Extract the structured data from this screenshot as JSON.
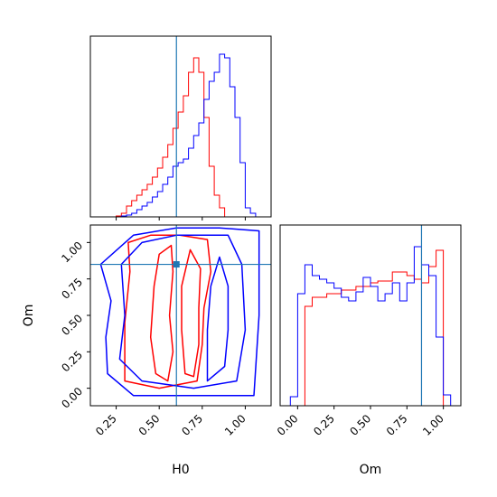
{
  "chart_data": {
    "type": "corner",
    "parameters": [
      "H0",
      "Om"
    ],
    "truths": {
      "H0": 0.6,
      "Om": 0.85
    },
    "colors": {
      "red": "#ff0000",
      "blue": "#0000ff",
      "truth": "#1f77b4"
    },
    "axes": {
      "H0": {
        "label": "H0",
        "range": [
          0.1,
          1.15
        ],
        "ticks": [
          "0.25",
          "0.50",
          "0.75",
          "1.00"
        ],
        "tick_values": [
          0.25,
          0.5,
          0.75,
          1.0
        ]
      },
      "Om": {
        "label": "Om",
        "range": [
          -0.12,
          1.12
        ],
        "ticks": [
          "0.00",
          "0.25",
          "0.50",
          "0.75",
          "1.00"
        ],
        "tick_values": [
          0.0,
          0.25,
          0.5,
          0.75,
          1.0
        ]
      }
    },
    "hist_H0": {
      "bin_edges": [
        0.25,
        0.28,
        0.31,
        0.34,
        0.37,
        0.4,
        0.43,
        0.46,
        0.49,
        0.52,
        0.55,
        0.58,
        0.61,
        0.64,
        0.67,
        0.7,
        0.73,
        0.76,
        0.79,
        0.82,
        0.85,
        0.88,
        0.91,
        0.94,
        0.97,
        1.0,
        1.03,
        1.06
      ],
      "red": [
        0.005,
        0.02,
        0.06,
        0.09,
        0.12,
        0.15,
        0.18,
        0.22,
        0.27,
        0.33,
        0.4,
        0.49,
        0.58,
        0.67,
        0.8,
        0.88,
        0.8,
        0.55,
        0.28,
        0.12,
        0.05,
        0.0,
        0.0,
        0.0,
        0.0,
        0.0,
        0.0
      ],
      "blue": [
        0.0,
        0.005,
        0.01,
        0.02,
        0.04,
        0.06,
        0.08,
        0.11,
        0.14,
        0.18,
        0.22,
        0.28,
        0.3,
        0.32,
        0.38,
        0.45,
        0.52,
        0.65,
        0.75,
        0.8,
        0.9,
        0.88,
        0.72,
        0.55,
        0.3,
        0.05,
        0.02
      ]
    },
    "hist_Om": {
      "bin_edges": [
        -0.05,
        0.0,
        0.05,
        0.1,
        0.15,
        0.2,
        0.25,
        0.3,
        0.35,
        0.4,
        0.45,
        0.5,
        0.55,
        0.6,
        0.65,
        0.7,
        0.75,
        0.8,
        0.85,
        0.9,
        0.95,
        1.0,
        1.05
      ],
      "red": [
        0.0,
        0.0,
        0.55,
        0.6,
        0.6,
        0.62,
        0.62,
        0.64,
        0.64,
        0.66,
        0.66,
        0.68,
        0.69,
        0.69,
        0.74,
        0.74,
        0.72,
        0.7,
        0.68,
        0.77,
        0.86,
        0.0
      ],
      "blue": [
        0.05,
        0.62,
        0.78,
        0.72,
        0.7,
        0.68,
        0.65,
        0.6,
        0.58,
        0.63,
        0.71,
        0.66,
        0.58,
        0.62,
        0.68,
        0.58,
        0.68,
        0.88,
        0.78,
        0.72,
        0.38,
        0.06
      ]
    },
    "contours_2d": {
      "red": [
        [
          [
            0.3,
            0.05
          ],
          [
            0.3,
            0.45
          ],
          [
            0.33,
            0.8
          ],
          [
            0.32,
            1.0
          ],
          [
            0.45,
            1.05
          ],
          [
            0.62,
            1.05
          ],
          [
            0.78,
            1.02
          ],
          [
            0.8,
            0.8
          ],
          [
            0.76,
            0.55
          ],
          [
            0.75,
            0.3
          ],
          [
            0.72,
            0.05
          ],
          [
            0.5,
            0.0
          ]
        ],
        [
          [
            0.45,
            0.35
          ],
          [
            0.47,
            0.7
          ],
          [
            0.5,
            0.92
          ],
          [
            0.57,
            0.98
          ],
          [
            0.58,
            0.8
          ],
          [
            0.56,
            0.5
          ],
          [
            0.58,
            0.25
          ],
          [
            0.55,
            0.05
          ],
          [
            0.48,
            0.1
          ]
        ],
        [
          [
            0.65,
            0.1
          ],
          [
            0.63,
            0.4
          ],
          [
            0.63,
            0.7
          ],
          [
            0.68,
            0.95
          ],
          [
            0.74,
            0.82
          ],
          [
            0.73,
            0.55
          ],
          [
            0.73,
            0.3
          ],
          [
            0.7,
            0.08
          ]
        ]
      ],
      "blue": [
        [
          [
            0.16,
            0.85
          ],
          [
            0.22,
            0.6
          ],
          [
            0.19,
            0.35
          ],
          [
            0.2,
            0.1
          ],
          [
            0.35,
            -0.05
          ],
          [
            0.6,
            -0.05
          ],
          [
            0.85,
            -0.05
          ],
          [
            1.05,
            -0.05
          ],
          [
            1.08,
            0.5
          ],
          [
            1.08,
            1.08
          ],
          [
            0.85,
            1.1
          ],
          [
            0.6,
            1.1
          ],
          [
            0.35,
            1.05
          ]
        ],
        [
          [
            0.28,
            0.85
          ],
          [
            0.3,
            0.5
          ],
          [
            0.27,
            0.2
          ],
          [
            0.4,
            0.05
          ],
          [
            0.7,
            0.0
          ],
          [
            0.95,
            0.05
          ],
          [
            1.0,
            0.4
          ],
          [
            0.98,
            0.85
          ],
          [
            0.9,
            1.05
          ],
          [
            0.6,
            1.05
          ],
          [
            0.4,
            1.0
          ]
        ],
        [
          [
            0.78,
            0.05
          ],
          [
            0.78,
            0.4
          ],
          [
            0.8,
            0.7
          ],
          [
            0.85,
            0.9
          ],
          [
            0.9,
            0.7
          ],
          [
            0.9,
            0.4
          ],
          [
            0.88,
            0.15
          ]
        ]
      ]
    }
  }
}
